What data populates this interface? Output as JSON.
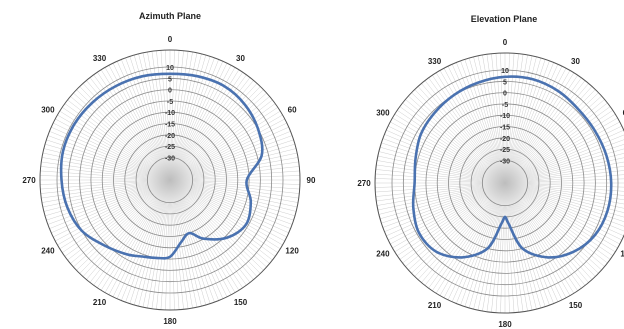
{
  "chart_data": [
    {
      "type": "polar-line",
      "title": "Azimuth Plane",
      "angle_ticks": [
        "0",
        "30",
        "60",
        "90",
        "120",
        "150",
        "180",
        "210",
        "240",
        "270",
        "300",
        "330"
      ],
      "radial_ticks": [
        "10",
        "5",
        "0",
        "-5",
        "-10",
        "-15",
        "-20",
        "-25",
        "-30"
      ],
      "rlim": [
        -40,
        10
      ],
      "line_color": "#4a72b0",
      "series": [
        {
          "points": [
            {
              "angle": 0,
              "value": 7
            },
            {
              "angle": 15,
              "value": 7.5
            },
            {
              "angle": 30,
              "value": 8
            },
            {
              "angle": 45,
              "value": 7
            },
            {
              "angle": 60,
              "value": 5
            },
            {
              "angle": 75,
              "value": 2
            },
            {
              "angle": 90,
              "value": -6
            },
            {
              "angle": 105,
              "value": -3
            },
            {
              "angle": 120,
              "value": -1
            },
            {
              "angle": 135,
              "value": -4
            },
            {
              "angle": 150,
              "value": -10
            },
            {
              "angle": 160,
              "value": -15
            },
            {
              "angle": 170,
              "value": -12
            },
            {
              "angle": 180,
              "value": -6
            },
            {
              "angle": 190,
              "value": -5
            },
            {
              "angle": 200,
              "value": -4
            },
            {
              "angle": 210,
              "value": -2
            },
            {
              "angle": 225,
              "value": 1
            },
            {
              "angle": 240,
              "value": 5
            },
            {
              "angle": 255,
              "value": 7
            },
            {
              "angle": 270,
              "value": 8
            },
            {
              "angle": 285,
              "value": 9
            },
            {
              "angle": 300,
              "value": 9
            },
            {
              "angle": 315,
              "value": 8.5
            },
            {
              "angle": 330,
              "value": 8
            },
            {
              "angle": 345,
              "value": 7.5
            }
          ]
        }
      ]
    },
    {
      "type": "polar-line",
      "title": "Elevation Plane",
      "angle_ticks": [
        "0",
        "30",
        "60",
        "90",
        "120",
        "150",
        "180",
        "210",
        "240",
        "270",
        "300",
        "330"
      ],
      "radial_ticks": [
        "10",
        "5",
        "0",
        "-5",
        "-10",
        "-15",
        "-20",
        "-25",
        "-30"
      ],
      "rlim": [
        -40,
        10
      ],
      "line_color": "#4a72b0",
      "series": [
        {
          "points": [
            {
              "angle": 0,
              "value": 7
            },
            {
              "angle": 15,
              "value": 7.5
            },
            {
              "angle": 30,
              "value": 7
            },
            {
              "angle": 45,
              "value": 6
            },
            {
              "angle": 60,
              "value": 6
            },
            {
              "angle": 75,
              "value": 6.5
            },
            {
              "angle": 90,
              "value": 7
            },
            {
              "angle": 105,
              "value": 7
            },
            {
              "angle": 120,
              "value": 6
            },
            {
              "angle": 135,
              "value": 3
            },
            {
              "angle": 150,
              "value": -2
            },
            {
              "angle": 165,
              "value": -10
            },
            {
              "angle": 175,
              "value": -22
            },
            {
              "angle": 180,
              "value": -25
            },
            {
              "angle": 185,
              "value": -22
            },
            {
              "angle": 195,
              "value": -10
            },
            {
              "angle": 210,
              "value": -2
            },
            {
              "angle": 225,
              "value": 3
            },
            {
              "angle": 240,
              "value": 4
            },
            {
              "angle": 255,
              "value": 2
            },
            {
              "angle": 270,
              "value": 0
            },
            {
              "angle": 285,
              "value": 1
            },
            {
              "angle": 300,
              "value": 3
            },
            {
              "angle": 315,
              "value": 4
            },
            {
              "angle": 330,
              "value": 5
            },
            {
              "angle": 345,
              "value": 6
            }
          ]
        }
      ]
    }
  ]
}
